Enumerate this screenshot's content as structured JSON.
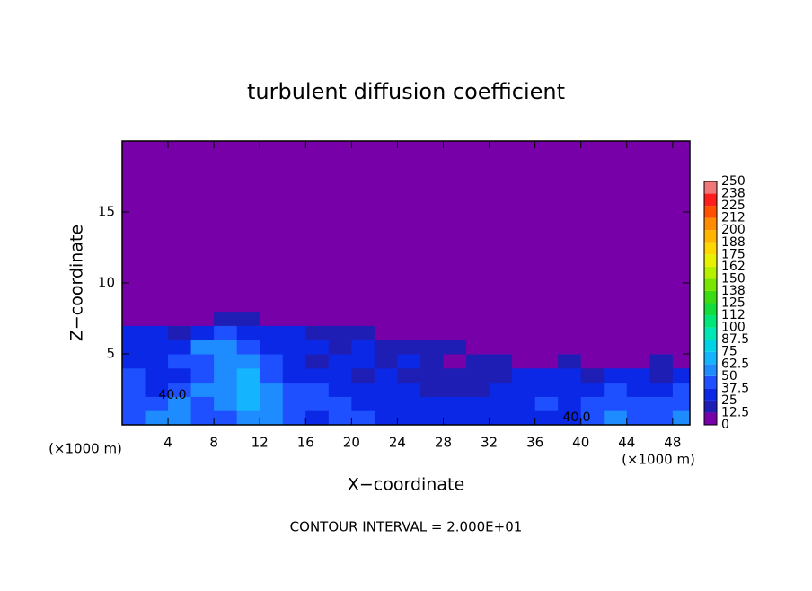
{
  "chart_data": {
    "type": "heatmap",
    "title": "turbulent diffusion coefficient",
    "x_label": "X−coordinate",
    "y_label": "Z−coordinate",
    "x_unit_left": "(×1000 m)",
    "x_unit_right": "(×1000 m)",
    "note": "CONTOUR INTERVAL = 2.000E+01",
    "contour_labels": [
      "40.0",
      "40.0"
    ],
    "xlim": [
      0,
      49.5
    ],
    "ylim": [
      0,
      20
    ],
    "xticks": [
      4,
      8,
      12,
      16,
      20,
      24,
      28,
      32,
      36,
      40,
      44,
      48
    ],
    "yticks": [
      5,
      10,
      15
    ],
    "x": [
      1,
      3,
      5,
      7,
      9,
      11,
      13,
      15,
      17,
      19,
      21,
      23,
      25,
      27,
      29,
      31,
      33,
      35,
      37,
      39,
      41,
      43,
      45,
      47,
      49
    ],
    "z": [
      0.5,
      1.5,
      2.5,
      3.5,
      4.5,
      5.5,
      6.5,
      7.5,
      8.5,
      9.5
    ],
    "values": [
      [
        45,
        50,
        55,
        40,
        45,
        60,
        55,
        40,
        35,
        45,
        40,
        35,
        30,
        35,
        30,
        35,
        30,
        30,
        30,
        35,
        45,
        50,
        40,
        45,
        55
      ],
      [
        40,
        45,
        50,
        45,
        55,
        65,
        55,
        45,
        40,
        45,
        35,
        30,
        30,
        30,
        25,
        30,
        30,
        25,
        40,
        35,
        40,
        45,
        40,
        40,
        45
      ],
      [
        45,
        35,
        40,
        50,
        60,
        70,
        50,
        40,
        45,
        35,
        30,
        25,
        30,
        20,
        15,
        20,
        25,
        30,
        35,
        30,
        30,
        40,
        35,
        35,
        40
      ],
      [
        40,
        35,
        35,
        45,
        55,
        65,
        45,
        35,
        30,
        25,
        20,
        30,
        15,
        20,
        20,
        15,
        20,
        25,
        30,
        25,
        20,
        25,
        30,
        20,
        25
      ],
      [
        35,
        30,
        40,
        40,
        60,
        55,
        40,
        30,
        20,
        30,
        30,
        20,
        25,
        15,
        10,
        15,
        20,
        10,
        10,
        15,
        10,
        5,
        10,
        20,
        10
      ],
      [
        30,
        35,
        35,
        50,
        55,
        45,
        35,
        30,
        25,
        20,
        25,
        20,
        15,
        20,
        20,
        10,
        5,
        5,
        5,
        5,
        5,
        5,
        5,
        5,
        5
      ],
      [
        25,
        25,
        20,
        30,
        40,
        35,
        30,
        25,
        20,
        15,
        15,
        10,
        10,
        10,
        5,
        5,
        5,
        0,
        0,
        0,
        0,
        0,
        0,
        0,
        5
      ],
      [
        5,
        5,
        5,
        10,
        15,
        20,
        10,
        5,
        5,
        0,
        0,
        0,
        0,
        0,
        0,
        0,
        0,
        0,
        0,
        0,
        0,
        0,
        0,
        0,
        0
      ],
      [
        0,
        0,
        0,
        5,
        10,
        5,
        0,
        0,
        0,
        0,
        0,
        0,
        0,
        0,
        0,
        0,
        0,
        0,
        0,
        0,
        0,
        0,
        0,
        0,
        0
      ],
      [
        0,
        0,
        0,
        0,
        5,
        0,
        0,
        0,
        0,
        0,
        0,
        0,
        0,
        0,
        0,
        0,
        0,
        0,
        0,
        0,
        0,
        0,
        0,
        0,
        0
      ]
    ],
    "colorbar": {
      "levels": [
        0,
        12.5,
        25,
        37.5,
        50,
        62.5,
        75,
        87.5,
        100,
        112,
        125,
        138,
        150,
        162,
        175,
        188,
        200,
        212,
        225,
        238,
        250
      ],
      "colors": [
        "#7800a8",
        "#1e1eb4",
        "#0a28e6",
        "#1e50ff",
        "#1e8cff",
        "#14b4ff",
        "#00d2e6",
        "#00e6b4",
        "#00e678",
        "#14dc3c",
        "#3cdc14",
        "#78e600",
        "#b4f000",
        "#e6f000",
        "#ffd700",
        "#ffb400",
        "#ff8c00",
        "#ff5000",
        "#ff1e1e",
        "#f07878"
      ]
    }
  }
}
